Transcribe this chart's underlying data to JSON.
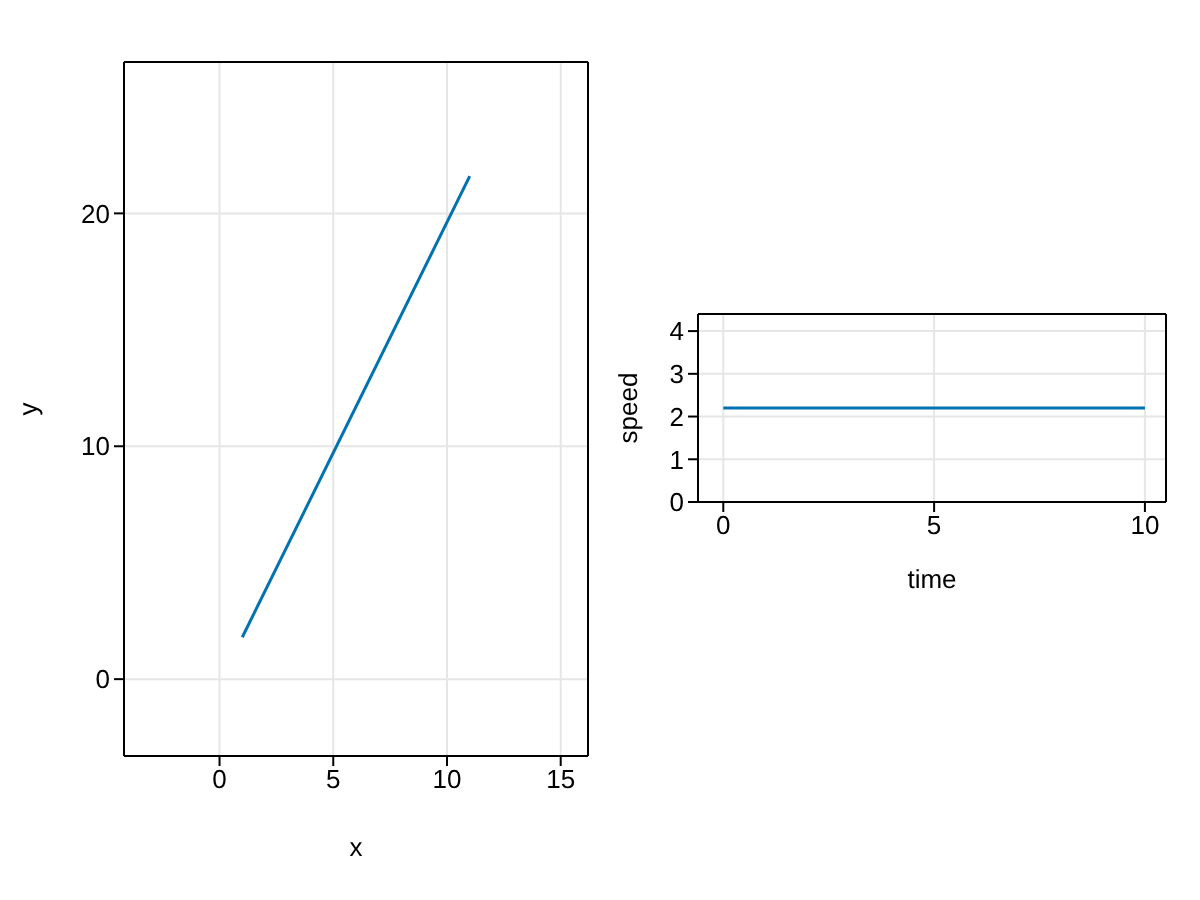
{
  "chart_data": [
    {
      "type": "line",
      "xlabel": "x",
      "ylabel": "y",
      "x": [
        1,
        11
      ],
      "series": [
        {
          "color": "#0072b2",
          "values": [
            1.8,
            21.6
          ]
        }
      ],
      "xlim": [
        -4.2,
        16.2
      ],
      "xticks": [
        0,
        5,
        10,
        15
      ],
      "ylim": [
        -3.3,
        26.5
      ],
      "yticks": [
        0,
        10,
        20
      ],
      "grid": true,
      "legend": false
    },
    {
      "type": "line",
      "xlabel": "time",
      "ylabel": "speed",
      "x": [
        0,
        10
      ],
      "series": [
        {
          "color": "#0072b2",
          "values": [
            2.2,
            2.2
          ]
        }
      ],
      "xlim": [
        -0.6,
        10.5
      ],
      "xticks": [
        0,
        5,
        10
      ],
      "ylim": [
        0,
        4.4
      ],
      "yticks": [
        0,
        1,
        2,
        3,
        4
      ],
      "grid": true,
      "legend": false
    }
  ]
}
